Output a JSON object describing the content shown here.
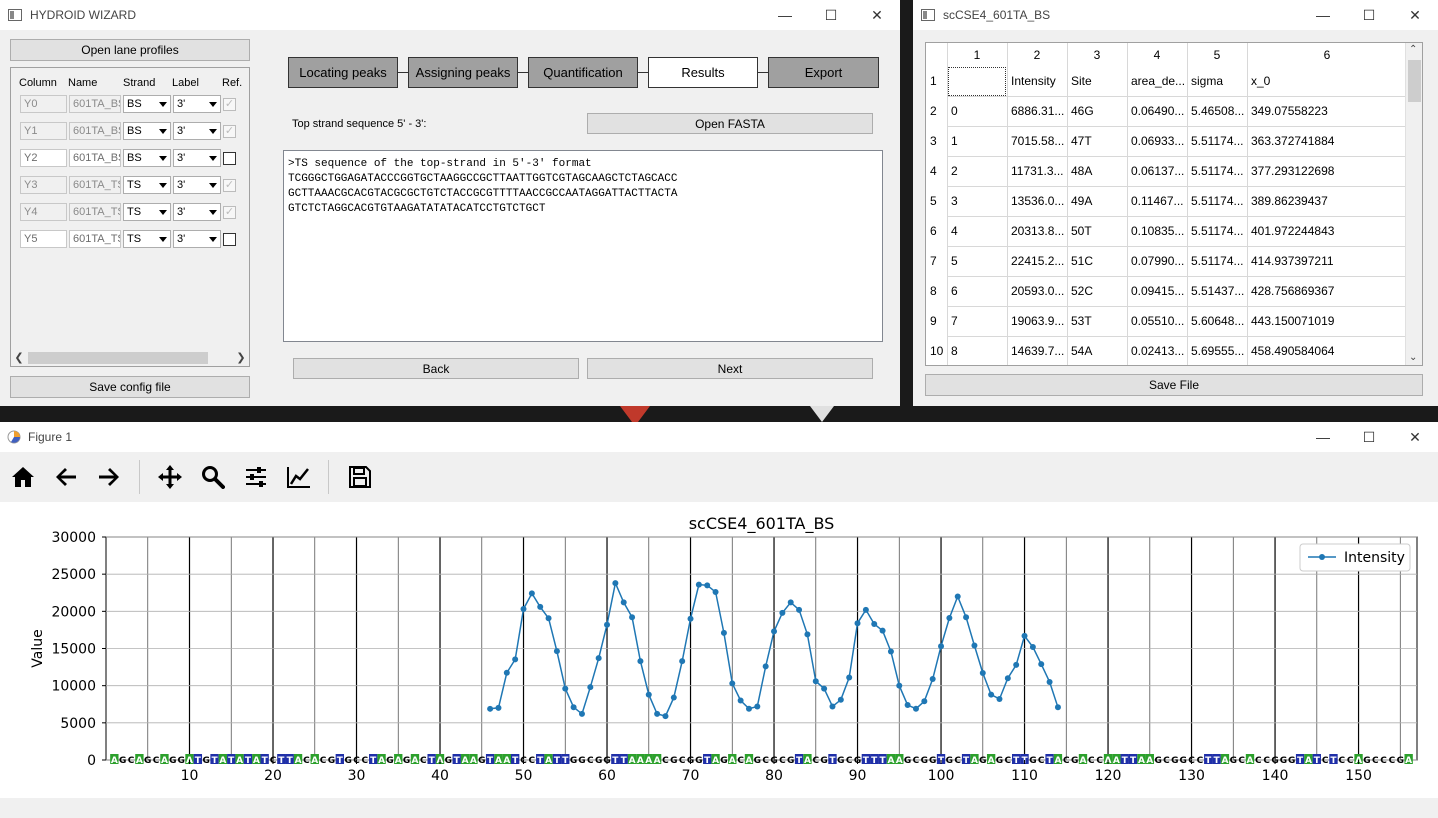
{
  "hydroid": {
    "title": "HYDROID WIZARD",
    "open_lane_profiles": "Open lane profiles",
    "save_config": "Save config file",
    "headers": [
      "Column",
      "Name",
      "Strand",
      "Label",
      "Ref."
    ],
    "lanes": [
      {
        "column": "Y0",
        "name": "601TA_BS",
        "strand": "BS",
        "label": "3'",
        "ref": true,
        "enabled": false
      },
      {
        "column": "Y1",
        "name": "601TA_BS",
        "strand": "BS",
        "label": "3'",
        "ref": true,
        "enabled": false
      },
      {
        "column": "Y2",
        "name": "601TA_BS",
        "strand": "BS",
        "label": "3'",
        "ref": false,
        "enabled": true
      },
      {
        "column": "Y3",
        "name": "601TA_TS",
        "strand": "TS",
        "label": "3'",
        "ref": true,
        "enabled": false
      },
      {
        "column": "Y4",
        "name": "601TA_TS",
        "strand": "TS",
        "label": "3'",
        "ref": true,
        "enabled": false
      },
      {
        "column": "Y5",
        "name": "601TA_TS",
        "strand": "TS",
        "label": "3'",
        "ref": false,
        "enabled": true
      }
    ],
    "steps": [
      "Locating peaks",
      "Assigning peaks",
      "Quantification",
      "Results",
      "Export"
    ],
    "active_step": "Results",
    "seq_label": "Top strand sequence 5' - 3':",
    "open_fasta": "Open FASTA",
    "sequence_lines": [
      ">TS sequence of the top-strand in 5'-3' format",
      "TCGGGCTGGAGATACCCGGTGCTAAGGCCGCTTAATTGGTCGTAGCAAGCTCTAGCACC",
      "GCTTAAACGCACGTACGCGCTGTCTACCGCGTTTTAACCGCCAATAGGATTACTTACTA",
      "GTCTCTAGGCACGTGTAAGATATATACATCCTGTCTGCT"
    ],
    "back": "Back",
    "next": "Next"
  },
  "results": {
    "title": "scCSE4_601TA_BS",
    "col_numbers": [
      "1",
      "2",
      "3",
      "4",
      "5",
      "6"
    ],
    "row_numbers": [
      "1",
      "2",
      "3",
      "4",
      "5",
      "6",
      "7",
      "8",
      "9",
      "10"
    ],
    "rows": [
      [
        "",
        "Intensity",
        "Site",
        "area_de...",
        "sigma",
        "x_0"
      ],
      [
        "0",
        "6886.31...",
        "46G",
        "0.06490...",
        "5.46508...",
        "349.07558223"
      ],
      [
        "1",
        "7015.58...",
        "47T",
        "0.06933...",
        "5.51174...",
        "363.372741884"
      ],
      [
        "2",
        "11731.3...",
        "48A",
        "0.06137...",
        "5.51174...",
        "377.293122698"
      ],
      [
        "3",
        "13536.0...",
        "49A",
        "0.11467...",
        "5.51174...",
        "389.86239437"
      ],
      [
        "4",
        "20313.8...",
        "50T",
        "0.10835...",
        "5.51174...",
        "401.972244843"
      ],
      [
        "5",
        "22415.2...",
        "51C",
        "0.07990...",
        "5.51174...",
        "414.937397211"
      ],
      [
        "6",
        "20593.0...",
        "52C",
        "0.09415...",
        "5.51437...",
        "428.756869367"
      ],
      [
        "7",
        "19063.9...",
        "53T",
        "0.05510...",
        "5.60648...",
        "443.150071019"
      ],
      [
        "8",
        "14639.7...",
        "54A",
        "0.02413...",
        "5.69555...",
        "458.490584064"
      ]
    ],
    "save_file": "Save File"
  },
  "figure": {
    "title": "Figure 1",
    "toolbar": [
      "home-icon",
      "back-arrow-icon",
      "forward-arrow-icon",
      "pan-icon",
      "zoom-icon",
      "subplots-icon",
      "edit-axes-icon",
      "save-icon"
    ]
  },
  "chart_data": {
    "type": "line",
    "title": "scCSE4_601TA_BS",
    "xlabel": "",
    "ylabel": "Value",
    "xlim": [
      0,
      157
    ],
    "ylim": [
      0,
      30000
    ],
    "xticks": [
      10,
      20,
      30,
      40,
      50,
      60,
      70,
      80,
      90,
      100,
      110,
      120,
      130,
      140,
      150
    ],
    "yticks": [
      0,
      5000,
      10000,
      15000,
      20000,
      25000,
      30000
    ],
    "legend_position": "top-right",
    "line_color": "#1f77b4",
    "sequence": "AGCAGCAGGATGTATATATCTTACACGTGCCTAGAGACTAGTAAGTAATCCTATTGGCGGTTAAAACGCGGTAGACAGCGCGTACGTGCGTTTAAGCGGTGCTAGAGCTTGCTACGACCAATTAAGCGGCCTTAGCACCGGGTATCTCCAGCCCGA",
    "base_colors": {
      "A": "#2ca02c",
      "T": "#1f2fa8"
    },
    "series": [
      {
        "name": "Intensity",
        "x": [
          46,
          47,
          48,
          49,
          50,
          51,
          52,
          53,
          54,
          55,
          56,
          57,
          58,
          59,
          60,
          61,
          62,
          63,
          64,
          65,
          66,
          67,
          68,
          69,
          70,
          71,
          72,
          73,
          74,
          75,
          76,
          77,
          78,
          79,
          80,
          81,
          82,
          83,
          84,
          85,
          86,
          87,
          88,
          89,
          90,
          91,
          92,
          93,
          94,
          95,
          96,
          97,
          98,
          99,
          100,
          101,
          102,
          103,
          104,
          105,
          106,
          107,
          108,
          109,
          110,
          111,
          112,
          113,
          114
        ],
        "y": [
          6886,
          7016,
          11731,
          13536,
          20314,
          22415,
          20593,
          19064,
          14640,
          9600,
          7100,
          6200,
          9800,
          13700,
          18200,
          23800,
          21200,
          19200,
          13300,
          8800,
          6200,
          5900,
          8400,
          13300,
          19000,
          23600,
          23500,
          22600,
          17100,
          10300,
          8000,
          6900,
          7200,
          12600,
          17300,
          19800,
          21200,
          20200,
          16900,
          10600,
          9600,
          7200,
          8100,
          11100,
          18400,
          20200,
          18300,
          17400,
          14600,
          10000,
          7400,
          6900,
          7900,
          10900,
          15300,
          19100,
          22000,
          19200,
          15400,
          11700,
          8800,
          8200,
          11000,
          12800,
          16700,
          15200,
          12900,
          10500,
          7100
        ]
      }
    ]
  }
}
